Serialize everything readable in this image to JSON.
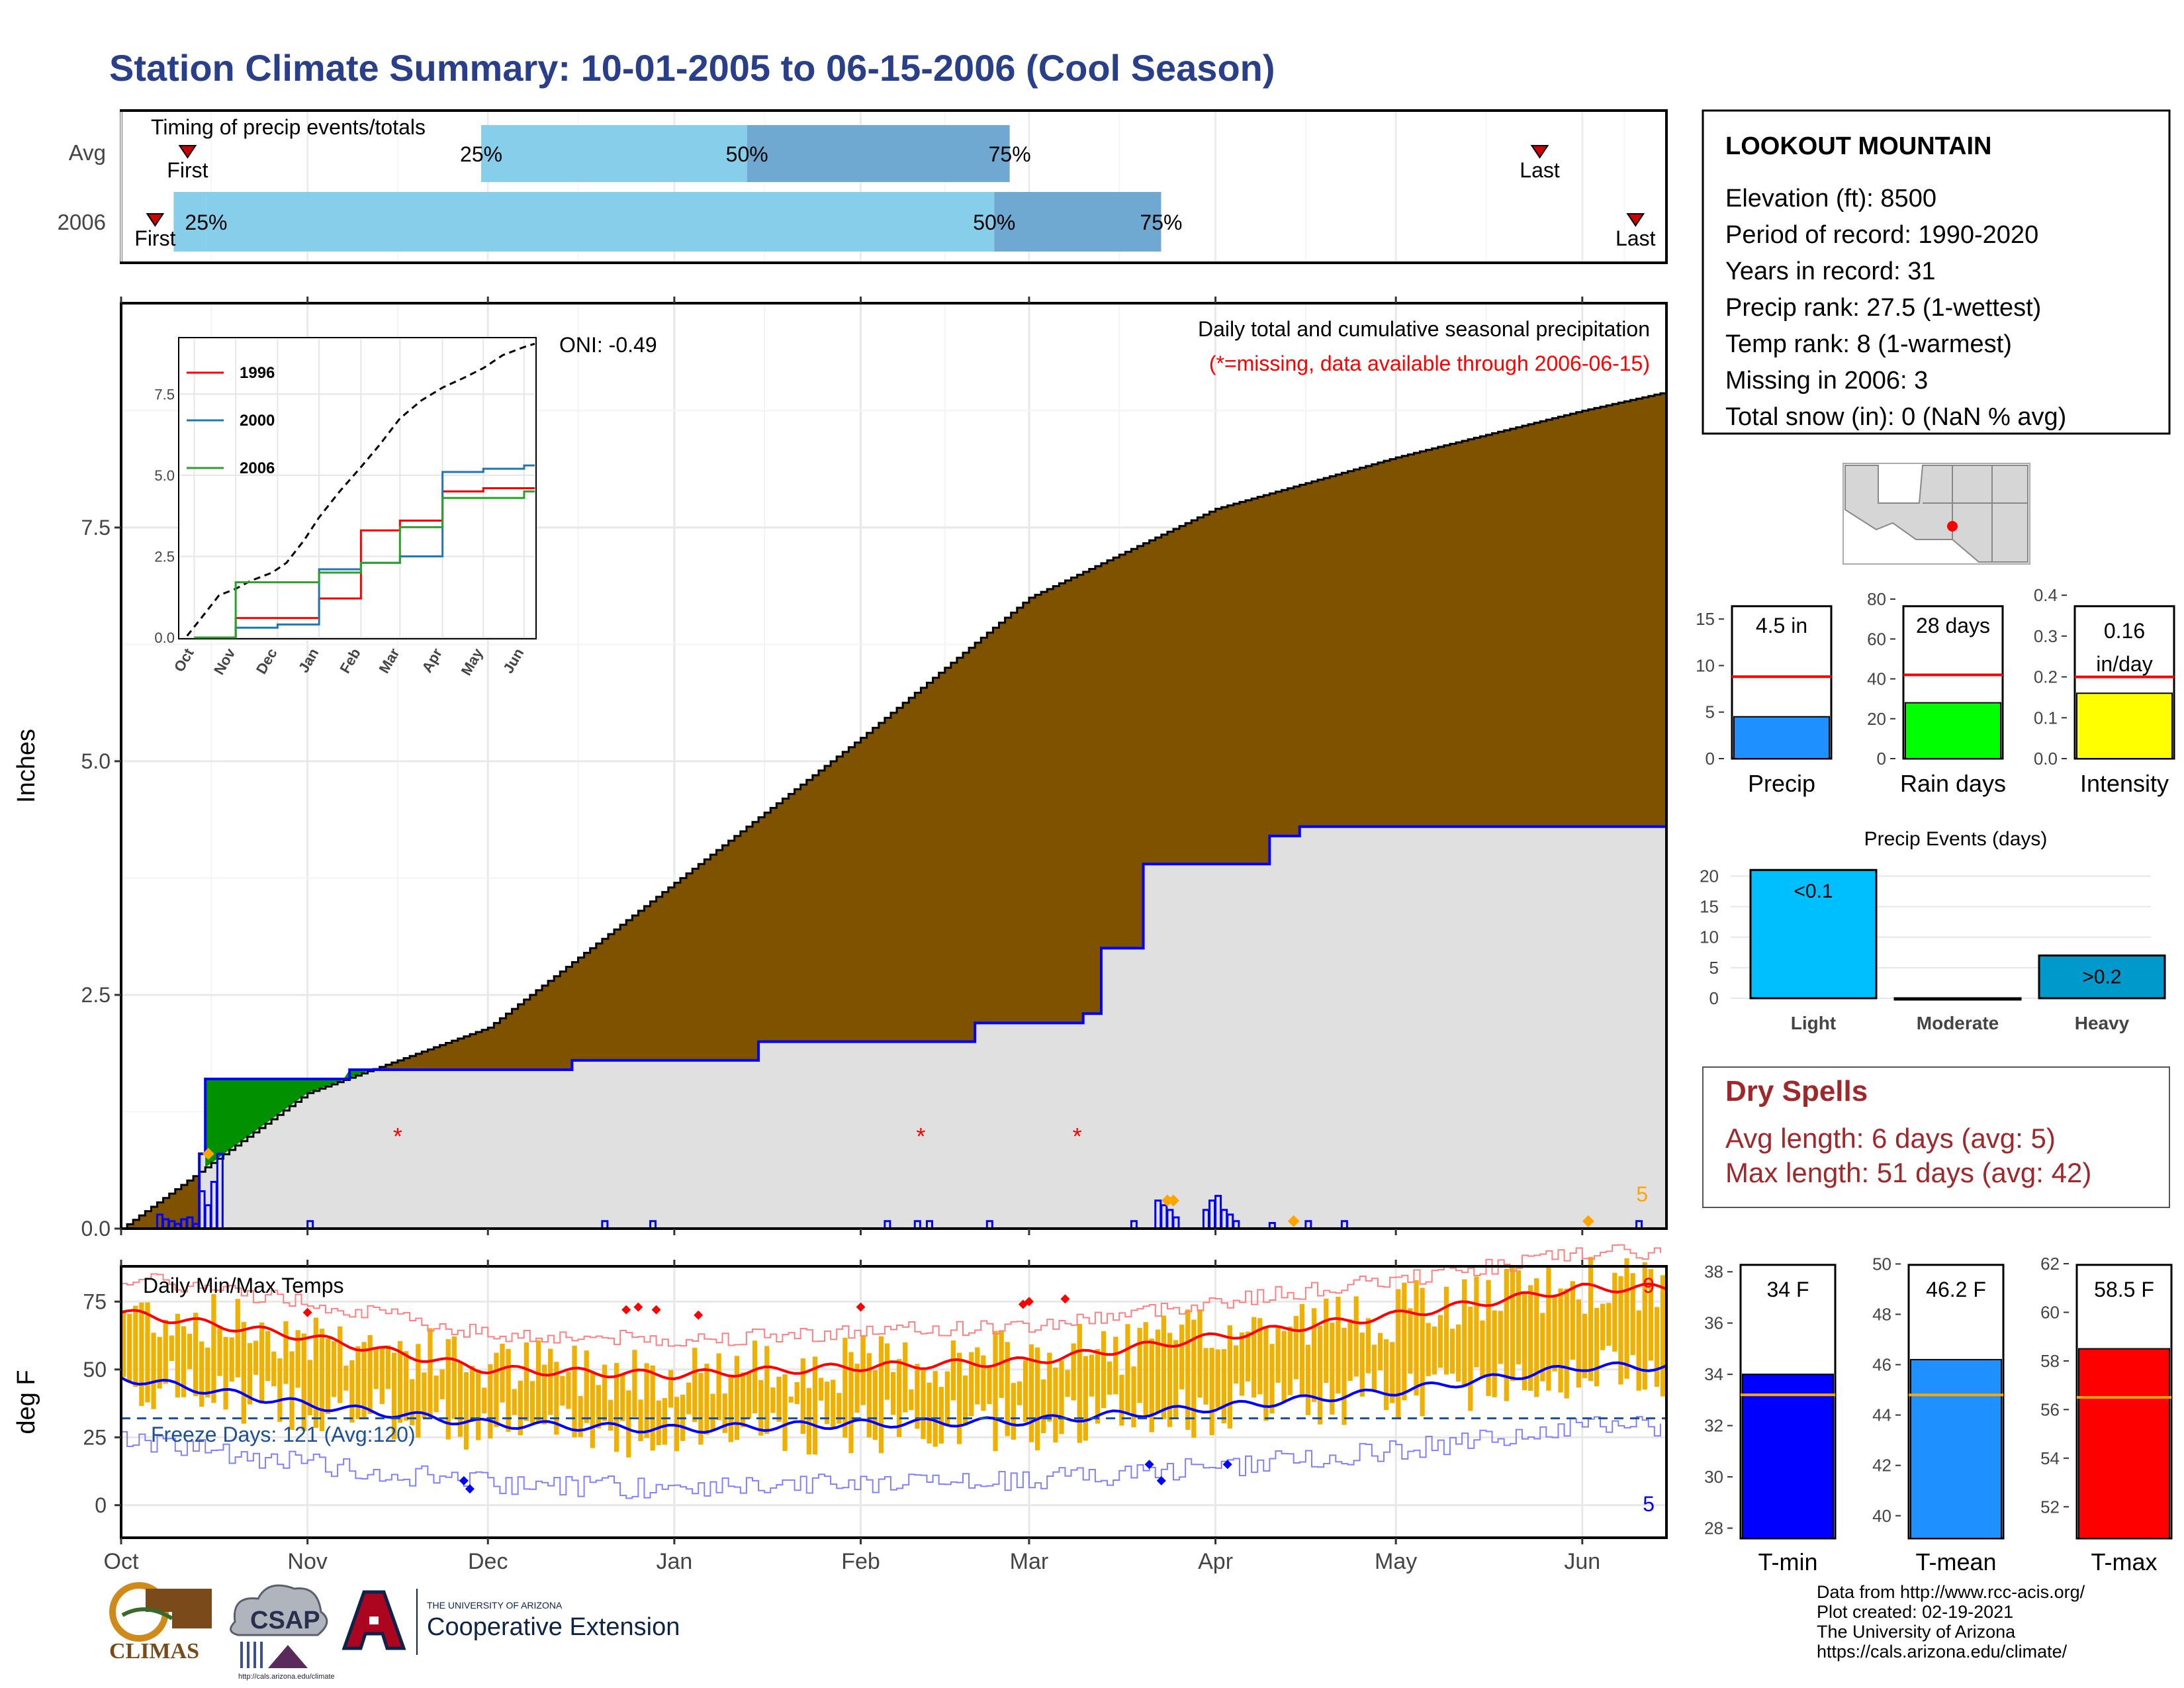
{
  "title": "Station Climate Summary: 10-01-2005 to 06-15-2006 (Cool Season)",
  "colors": {
    "title": "#2a3f8a",
    "brown": "#7f5200",
    "green": "#009000",
    "obs_fill": "#e0e0e0",
    "timing_light": "#87ceeb",
    "timing_dark": "#6fa8d0",
    "tmax": "#ff0000",
    "tmin": "#0000ff",
    "bars": "#f0b000",
    "dryspell": "#a0272a"
  },
  "timing": {
    "label": "Timing of precip events/totals",
    "rows": [
      {
        "name": "Avg",
        "first_label": "First",
        "last_label": "Last",
        "first": 0.043,
        "p25": 0.233,
        "p50": 0.405,
        "p75": 0.575,
        "last": 0.918
      },
      {
        "name": "2006",
        "first_label": "First",
        "last_label": "Last",
        "first": 0.022,
        "p25": 0.055,
        "p50": 0.565,
        "p75": 0.673,
        "last": 0.98
      }
    ],
    "pct_labels": [
      "25%",
      "50%",
      "75%"
    ]
  },
  "station": {
    "name": "LOOKOUT MOUNTAIN",
    "lines": [
      "Elevation (ft): 8500",
      "Period of record: 1990-2020",
      "Years in record: 31",
      "Precip rank: 27.5 (1-wettest)",
      "Temp rank: 8 (1-warmest)",
      "Missing in 2006: 3",
      "Total snow (in): 0 (NaN % avg)"
    ]
  },
  "main_plot": {
    "ylabel": "Inches",
    "title_line1": "Daily total and cumulative seasonal precipitation",
    "title_line2": "(*=missing, data available through 2006-06-15)",
    "oni": "ONI: -0.49",
    "count_label": "5",
    "yticks": [
      "0.0",
      "2.5",
      "5.0",
      "7.5"
    ]
  },
  "inset": {
    "series_names": [
      "1996",
      "2000",
      "2006"
    ],
    "series_colors": [
      "#ff0000",
      "#1f77b4",
      "#2ca02c"
    ],
    "yticks": [
      "0.0",
      "2.5",
      "5.0",
      "7.5"
    ],
    "xticks": [
      "Oct",
      "Nov",
      "Dec",
      "Jan",
      "Feb",
      "Mar",
      "Apr",
      "May",
      "Jun"
    ]
  },
  "temps": {
    "title": "Daily Min/Max Temps",
    "ylabel": "deg F",
    "freeze": "Freeze Days: 121 (Avg:120)",
    "count_top": "9",
    "count_bottom": "5",
    "yticks": [
      "0",
      "25",
      "50",
      "75"
    ]
  },
  "months": [
    "Oct",
    "Nov",
    "Dec",
    "Jan",
    "Feb",
    "Mar",
    "Apr",
    "May",
    "Jun"
  ],
  "mini_bars": [
    {
      "value_label": "4.5 in",
      "name": "Precip",
      "ticks": [
        "0",
        "5",
        "10",
        "15"
      ],
      "color": "#1e90ff"
    },
    {
      "value_label": "28 days",
      "name": "Rain days",
      "ticks": [
        "0",
        "20",
        "40",
        "60",
        "80"
      ],
      "color": "#00ff00"
    },
    {
      "value_label": "0.16\nin/day",
      "value_line1": "0.16",
      "value_line2": "in/day",
      "name": "Intensity",
      "ticks": [
        "0.0",
        "0.1",
        "0.2",
        "0.3",
        "0.4"
      ],
      "color": "#ffff00"
    }
  ],
  "precip_events": {
    "title": "Precip Events (days)",
    "categories": [
      "Light",
      "Moderate",
      "Heavy"
    ],
    "values": [
      21,
      0,
      7
    ],
    "labels": [
      "<0.1",
      "",
      ">0.2"
    ],
    "yticks": [
      "0",
      "5",
      "10",
      "15",
      "20"
    ]
  },
  "dry_spells": {
    "title": "Dry Spells",
    "avg": "Avg length: 6 days (avg: 5)",
    "max": "Max length: 51 days (avg: 42)"
  },
  "temp_bars": [
    {
      "value_label": "34 F",
      "name": "T-min",
      "ticks": [
        "28",
        "30",
        "32",
        "34",
        "36",
        "38"
      ],
      "color": "#0000ff"
    },
    {
      "value_label": "46.2 F",
      "name": "T-mean",
      "ticks": [
        "40",
        "42",
        "44",
        "46",
        "48",
        "50"
      ],
      "color": "#1e90ff"
    },
    {
      "value_label": "58.5 F",
      "name": "T-max",
      "ticks": [
        "52",
        "54",
        "56",
        "58",
        "60",
        "62"
      ],
      "color": "#ff0000"
    }
  ],
  "credits": [
    "Data from http://www.rcc-acis.org/",
    "Plot created: 02-19-2021",
    "The University of Arizona",
    "https://cals.arizona.edu/climate/"
  ],
  "logos": {
    "climas": "CLIMAS",
    "csap": "CSAP",
    "csap_url": "http://cals.arizona.edu/climate",
    "ua_small": "THE UNIVERSITY OF ARIZONA",
    "ua_big": "Cooperative Extension"
  },
  "chart_data": [
    {
      "type": "area",
      "title": "Daily total and cumulative seasonal precipitation",
      "ylabel": "Inches",
      "x_range": [
        "2005-10-01",
        "2006-06-15"
      ],
      "ylim": [
        0,
        9.5
      ],
      "series": [
        {
          "name": "Average cumulative",
          "x": [
            "2005-10-01",
            "2005-11-01",
            "2005-12-01",
            "2006-01-01",
            "2006-02-01",
            "2006-03-01",
            "2006-04-01",
            "2006-05-01",
            "2006-06-01",
            "2006-06-15"
          ],
          "values": [
            0,
            1.45,
            2.15,
            3.7,
            5.25,
            6.75,
            7.7,
            8.25,
            8.75,
            8.95
          ]
        },
        {
          "name": "2006 cumulative",
          "x": [
            "2005-10-01",
            "2005-10-14",
            "2005-10-15",
            "2005-11-01",
            "2005-11-08",
            "2005-12-15",
            "2006-01-15",
            "2006-02-20",
            "2006-03-10",
            "2006-03-13",
            "2006-03-20",
            "2006-04-10",
            "2006-04-15",
            "2006-06-02",
            "2006-06-15"
          ],
          "values": [
            0,
            0.8,
            1.6,
            1.6,
            1.7,
            1.8,
            2.0,
            2.2,
            2.3,
            3.0,
            3.9,
            4.2,
            4.3,
            4.3,
            4.5
          ]
        }
      ],
      "missing_markers": [
        "2005-11-16",
        "2006-02-11",
        "2006-03-09"
      ]
    },
    {
      "type": "line",
      "title": "",
      "x_range": [
        "Oct",
        "Jun"
      ],
      "ylim": [
        0,
        9
      ],
      "series": [
        {
          "name": "1996",
          "x": [
            "Oct",
            "Nov",
            "Dec",
            "Jan",
            "Feb",
            "Mar",
            "Apr",
            "May",
            "Jun"
          ],
          "values": [
            0,
            0.6,
            0.6,
            1.2,
            3.3,
            3.6,
            4.5,
            4.6,
            4.6
          ]
        },
        {
          "name": "2000",
          "x": [
            "Oct",
            "Nov",
            "Dec",
            "Jan",
            "Feb",
            "Mar",
            "Apr",
            "May",
            "Jun"
          ],
          "values": [
            0,
            0.3,
            0.4,
            2.1,
            2.3,
            2.5,
            5.1,
            5.2,
            5.3
          ]
        },
        {
          "name": "2006",
          "x": [
            "Oct",
            "Nov",
            "Dec",
            "Jan",
            "Feb",
            "Mar",
            "Apr",
            "May",
            "Jun"
          ],
          "values": [
            0,
            1.7,
            1.7,
            2.0,
            2.3,
            3.4,
            4.3,
            4.3,
            4.5
          ]
        }
      ]
    },
    {
      "type": "line",
      "title": "Daily Min/Max Temps",
      "ylabel": "deg F",
      "ylim": [
        -12,
        85
      ],
      "series": [
        {
          "name": "Avg max",
          "x": [
            "Oct",
            "Nov",
            "Dec",
            "Jan",
            "Feb",
            "Mar",
            "Apr",
            "May",
            "Jun"
          ],
          "values": [
            71,
            62,
            50,
            48,
            51,
            53,
            62,
            70,
            80
          ]
        },
        {
          "name": "Avg min",
          "x": [
            "Oct",
            "Nov",
            "Dec",
            "Jan",
            "Feb",
            "Mar",
            "Apr",
            "May",
            "Jun"
          ],
          "values": [
            47,
            37,
            30,
            28,
            30,
            31,
            36,
            42,
            51
          ]
        }
      ],
      "freeze_line": 32
    },
    {
      "type": "bar",
      "title": "Precip Events (days)",
      "categories": [
        "Light",
        "Moderate",
        "Heavy"
      ],
      "values": [
        21,
        0,
        7
      ],
      "ylim": [
        0,
        22
      ]
    },
    {
      "type": "bar",
      "categories": [
        "Precip",
        "Rain days",
        "Intensity"
      ],
      "values": [
        4.5,
        28,
        0.16
      ],
      "averages": [
        8.8,
        42,
        0.2
      ]
    },
    {
      "type": "bar",
      "categories": [
        "T-min",
        "T-mean",
        "T-max"
      ],
      "values": [
        34,
        46.2,
        58.5
      ],
      "averages": [
        33.2,
        44.8,
        56.5
      ]
    }
  ]
}
